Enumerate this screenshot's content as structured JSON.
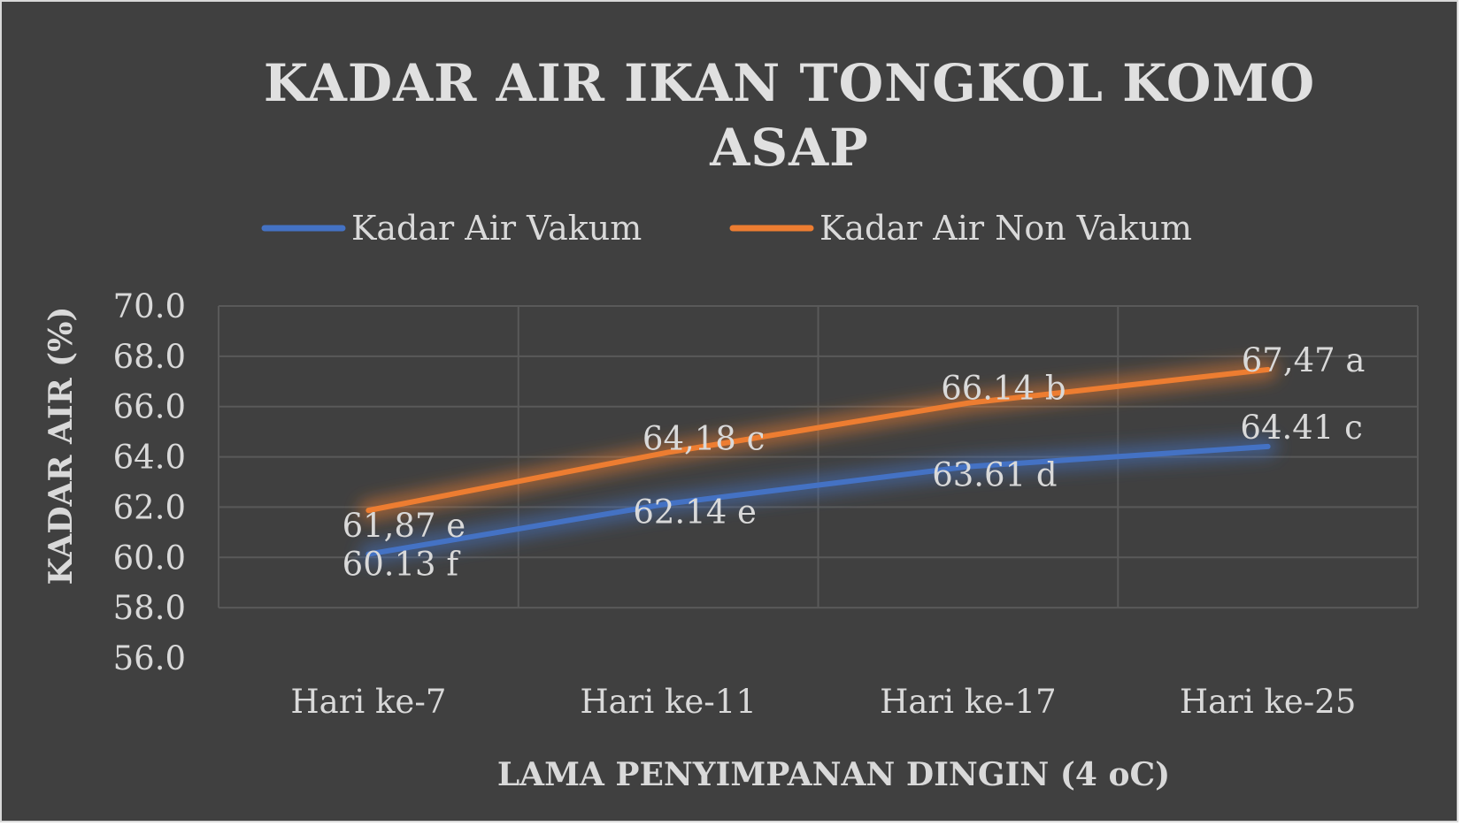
{
  "chart_data": {
    "type": "line",
    "title_lines": [
      "KADAR AIR IKAN TONGKOL KOMO",
      "ASAP"
    ],
    "xlabel": "LAMA PENYIMPANAN DINGIN (4 oC)",
    "ylabel": "KADAR AIR (%)",
    "categories": [
      "Hari ke-7",
      "Hari ke-11",
      "Hari ke-17",
      "Hari ke-25"
    ],
    "ylim": [
      56,
      70
    ],
    "yticks": [
      "56.0",
      "58.0",
      "60.0",
      "62.0",
      "64.0",
      "66.0",
      "68.0",
      "70.0"
    ],
    "grid": true,
    "legend_position": "top",
    "series": [
      {
        "name": "Kadar Air Vakum",
        "color": "#4472c4",
        "values": [
          60.13,
          62.14,
          63.61,
          64.41
        ],
        "labels": [
          "60.13 f",
          "62.14 e",
          "63.61 d",
          "64.41 c"
        ]
      },
      {
        "name": "Kadar Air Non Vakum",
        "color": "#ed7d31",
        "values": [
          61.87,
          64.18,
          66.14,
          67.47
        ],
        "labels": [
          "61,87 e",
          "64,18 c",
          "66.14 b",
          "67,47 a"
        ]
      }
    ]
  }
}
